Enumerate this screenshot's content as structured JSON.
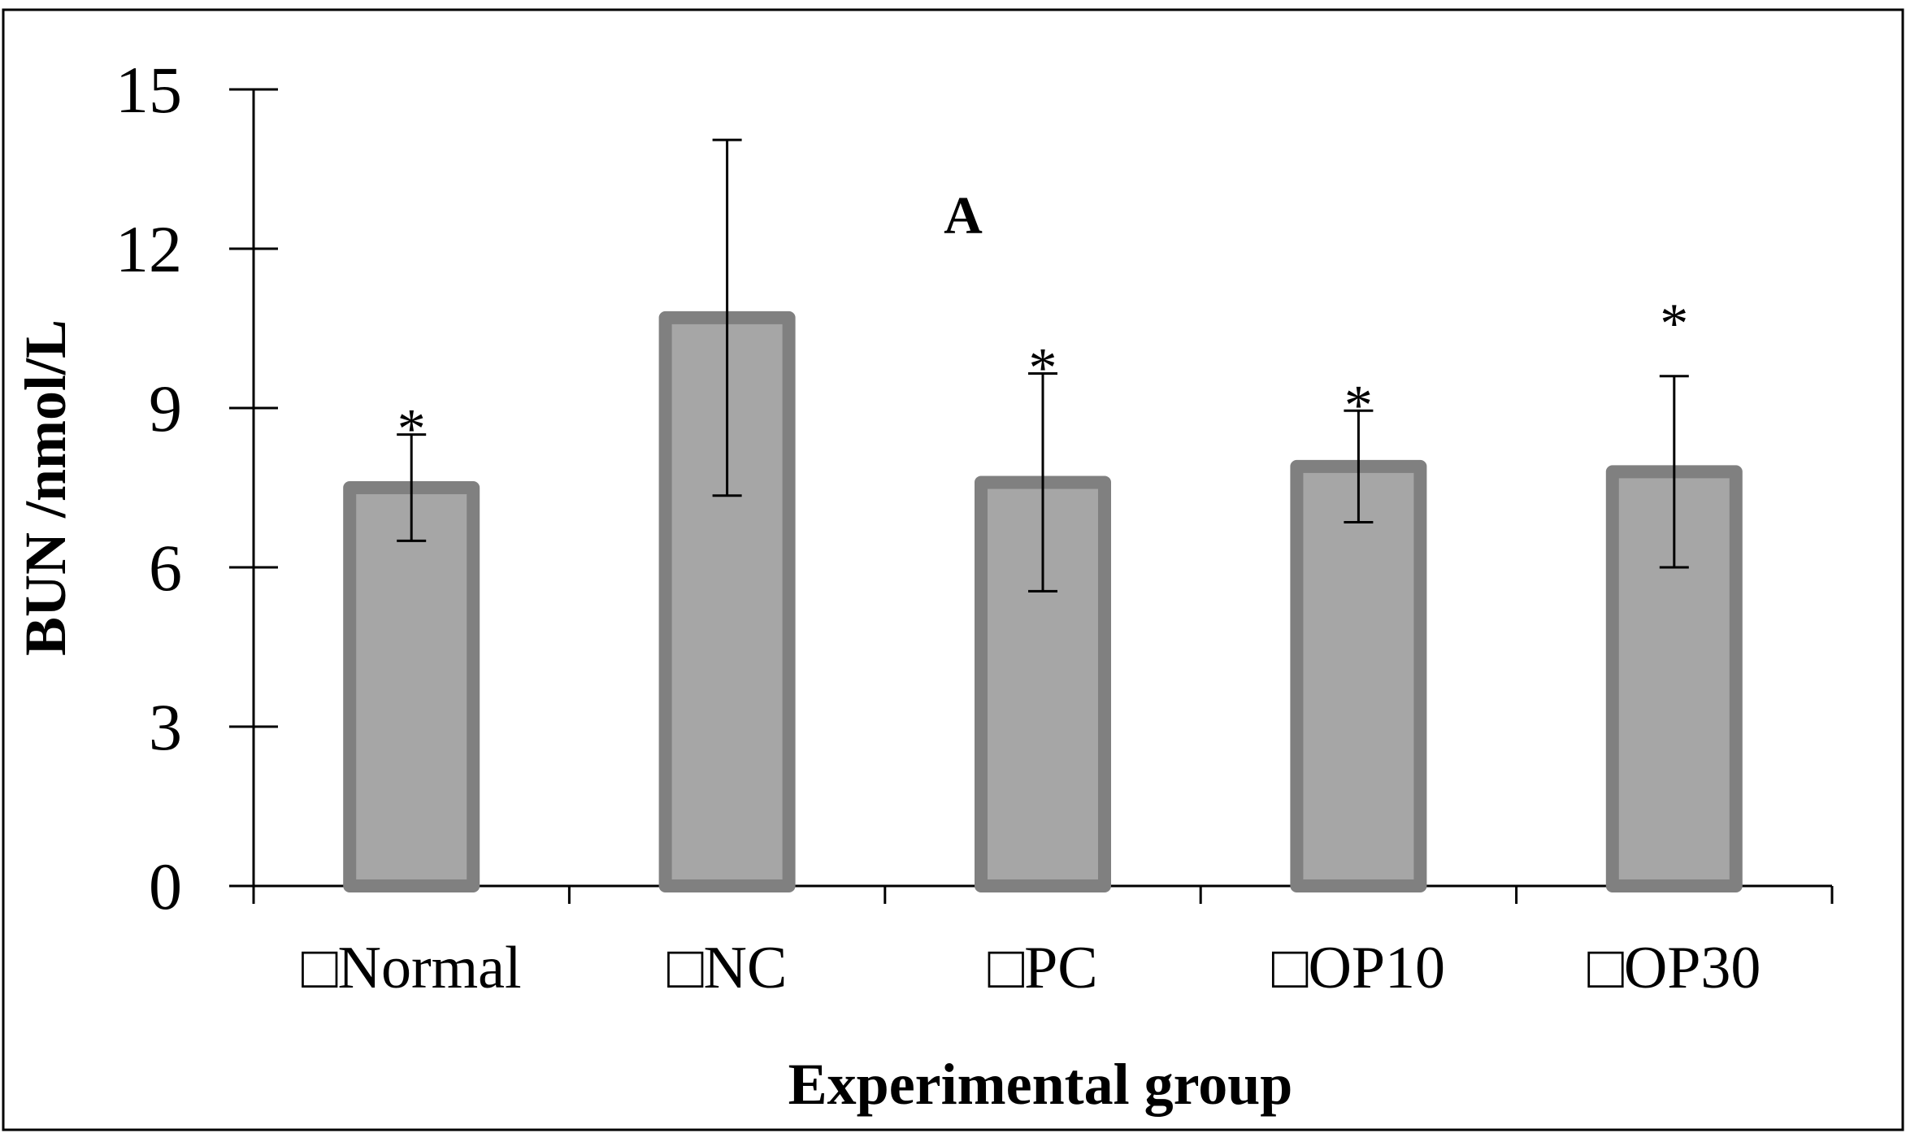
{
  "chart_data": {
    "type": "bar",
    "panel_label": "A",
    "xlabel": "Experimental group",
    "ylabel": "BUN /nmol/L",
    "ylim": [
      0,
      15
    ],
    "yticks": [
      0,
      3,
      6,
      9,
      12,
      15
    ],
    "categories": [
      "□Normal",
      "□NC",
      "□PC",
      "□OP10",
      "□OP30"
    ],
    "values": [
      7.5,
      10.7,
      7.6,
      7.9,
      7.8
    ],
    "errors": [
      1.0,
      3.35,
      2.05,
      1.05,
      1.8
    ],
    "significance": [
      "*",
      "",
      "*",
      "*",
      "*"
    ],
    "colors": {
      "bar_fill": "#a6a6a6",
      "bar_edge": "#808080",
      "axis": "#000000"
    },
    "grid": false,
    "legend": "none"
  }
}
